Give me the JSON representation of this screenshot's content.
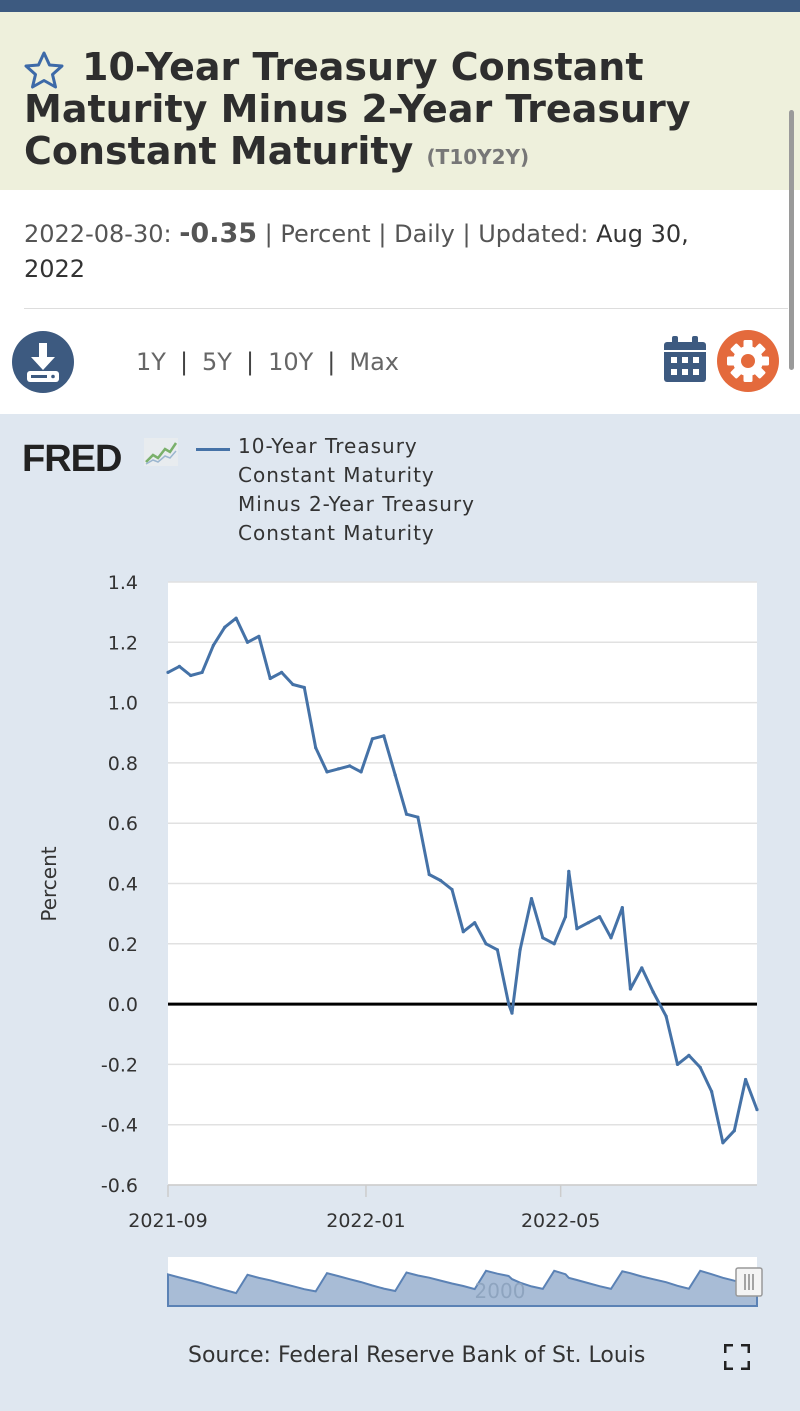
{
  "header": {
    "title": "10-Year Treasury Constant Maturity Minus 2-Year Treasury Constant Maturity",
    "title_lines": [
      "10-Year Treasury Constant",
      "Maturity Minus 2-Year Treasury",
      "Constant Maturity"
    ],
    "series_id": "(T10Y2Y)"
  },
  "meta": {
    "date": "2022-08-30:",
    "value": "-0.35",
    "units": "Percent",
    "frequency": "Daily",
    "updated_label": "Updated:",
    "updated_value_line1": "Aug 30,",
    "updated_value_line2": "2022",
    "separator": "|"
  },
  "toolbar": {
    "ranges": [
      "1Y",
      "5Y",
      "10Y",
      "Max"
    ],
    "download_icon": "download-icon",
    "calendar_icon": "calendar-icon",
    "settings_icon": "gear-icon"
  },
  "chart": {
    "logo_text": "FRED",
    "legend_lines": [
      "10-Year Treasury",
      "Constant Maturity",
      "Minus 2-Year Treasury",
      "Constant Maturity"
    ],
    "source": "Source: Federal Reserve Bank of St. Louis",
    "navigator_label": "2000"
  },
  "colors": {
    "series": "#4572a7",
    "brand_dark": "#3d5a80",
    "gear_orange": "#e46a3c",
    "title_band": "#eef0dc",
    "chart_bg": "#dfe7f0"
  },
  "chart_data": {
    "type": "line",
    "title": "10-Year Treasury Constant Maturity Minus 2-Year Treasury Constant Maturity",
    "xlabel": "",
    "ylabel": "Percent",
    "x_ticks": [
      "2021-09",
      "2022-01",
      "2022-05"
    ],
    "y_ticks": [
      "1.4",
      "1.2",
      "1.0",
      "0.8",
      "0.6",
      "0.4",
      "0.2",
      "0.0",
      "-0.2",
      "-0.4",
      "-0.6"
    ],
    "ylim": [
      -0.6,
      1.4
    ],
    "xlim": [
      "2021-09-01",
      "2022-08-30"
    ],
    "zero_line": true,
    "grid": true,
    "legend": "top",
    "series": [
      {
        "name": "10-Year Treasury Constant Maturity Minus 2-Year Treasury Constant Maturity",
        "x": [
          "2021-09-01",
          "2021-09-08",
          "2021-09-15",
          "2021-09-22",
          "2021-09-29",
          "2021-10-06",
          "2021-10-13",
          "2021-10-20",
          "2021-10-27",
          "2021-11-03",
          "2021-11-10",
          "2021-11-17",
          "2021-11-24",
          "2021-12-01",
          "2021-12-08",
          "2021-12-15",
          "2021-12-22",
          "2021-12-29",
          "2022-01-05",
          "2022-01-12",
          "2022-01-19",
          "2022-01-26",
          "2022-02-02",
          "2022-02-09",
          "2022-02-16",
          "2022-02-23",
          "2022-03-02",
          "2022-03-09",
          "2022-03-16",
          "2022-03-23",
          "2022-03-30",
          "2022-04-01",
          "2022-04-06",
          "2022-04-13",
          "2022-04-20",
          "2022-04-27",
          "2022-05-04",
          "2022-05-06",
          "2022-05-11",
          "2022-05-18",
          "2022-05-25",
          "2022-06-01",
          "2022-06-08",
          "2022-06-13",
          "2022-06-20",
          "2022-06-27",
          "2022-07-05",
          "2022-07-12",
          "2022-07-19",
          "2022-07-26",
          "2022-08-02",
          "2022-08-09",
          "2022-08-16",
          "2022-08-23",
          "2022-08-30"
        ],
        "values": [
          1.1,
          1.12,
          1.09,
          1.1,
          1.19,
          1.25,
          1.28,
          1.2,
          1.22,
          1.08,
          1.1,
          1.06,
          1.05,
          0.85,
          0.77,
          0.78,
          0.79,
          0.77,
          0.88,
          0.89,
          0.76,
          0.63,
          0.62,
          0.43,
          0.41,
          0.38,
          0.24,
          0.27,
          0.2,
          0.18,
          0.0,
          -0.03,
          0.18,
          0.35,
          0.22,
          0.2,
          0.29,
          0.44,
          0.25,
          0.27,
          0.29,
          0.22,
          0.32,
          0.05,
          0.12,
          0.04,
          -0.04,
          -0.2,
          -0.17,
          -0.21,
          -0.29,
          -0.46,
          -0.42,
          -0.25,
          -0.35
        ]
      }
    ]
  }
}
